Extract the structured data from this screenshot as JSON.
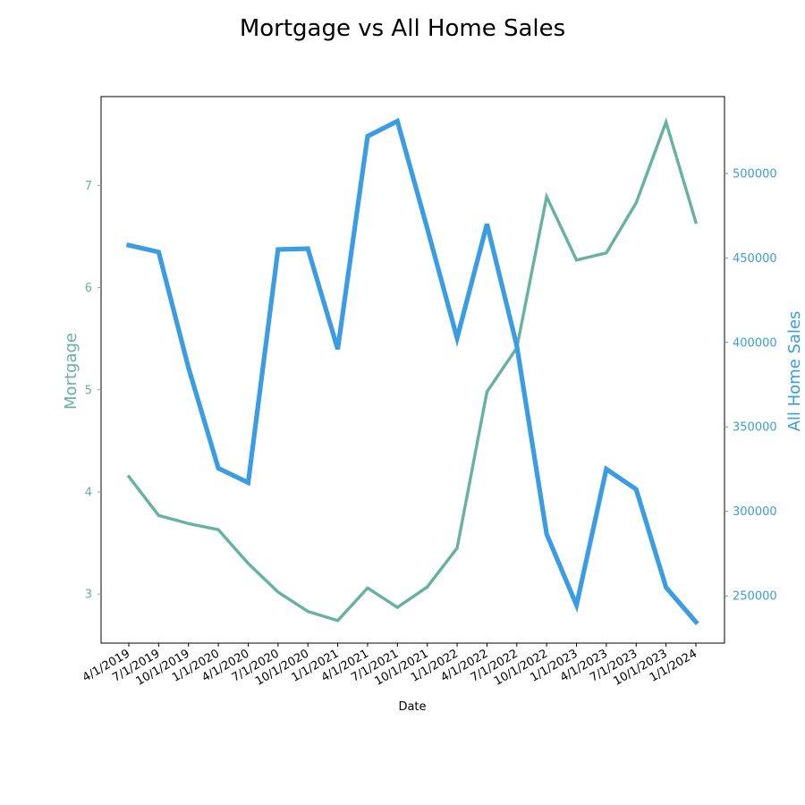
{
  "chart_data": {
    "type": "line",
    "title": "Mortgage vs All Home Sales",
    "xlabel": "Date",
    "categories": [
      "4/1/2019",
      "7/1/2019",
      "10/1/2019",
      "1/1/2020",
      "4/1/2020",
      "7/1/2020",
      "10/1/2020",
      "1/1/2021",
      "4/1/2021",
      "7/1/2021",
      "10/1/2021",
      "1/1/2022",
      "4/1/2022",
      "7/1/2022",
      "10/1/2022",
      "1/1/2023",
      "4/1/2023",
      "7/1/2023",
      "10/1/2023",
      "1/1/2024"
    ],
    "series": [
      {
        "name": "Mortgage",
        "axis": "left",
        "color": "#66b2a0",
        "values": [
          4.15,
          3.77,
          3.69,
          3.63,
          3.3,
          3.02,
          2.83,
          2.74,
          3.06,
          2.87,
          3.07,
          3.45,
          4.98,
          5.41,
          6.89,
          6.27,
          6.34,
          6.83,
          7.62,
          6.64
        ]
      },
      {
        "name": "All Home Sales",
        "axis": "right",
        "color": "#3a9ce3",
        "values": [
          457500,
          453500,
          385000,
          325500,
          317000,
          455000,
          455500,
          396000,
          522000,
          531000,
          467500,
          402500,
          470000,
          398000,
          286500,
          244500,
          325000,
          313000,
          255000,
          234500
        ]
      }
    ],
    "ylabel_left": "Mortgage",
    "ylabel_right": "All Home Sales",
    "ylim_left": [
      2.52,
      7.87
    ],
    "ylim_right": [
      222000,
      545500
    ],
    "yticks_left": [
      3,
      4,
      5,
      6,
      7
    ],
    "yticks_right": [
      250000,
      300000,
      350000,
      400000,
      450000,
      500000
    ],
    "grid": false
  }
}
